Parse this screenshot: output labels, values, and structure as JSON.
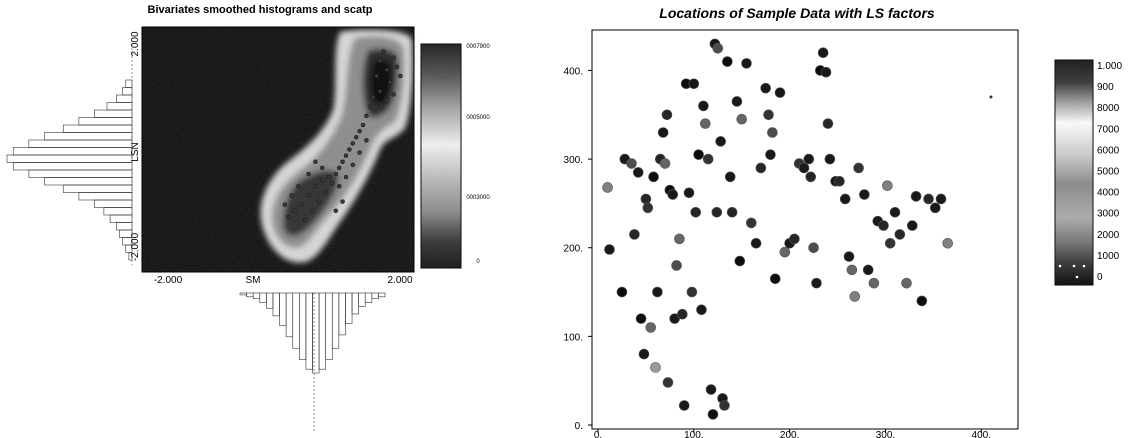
{
  "chart_data": [
    {
      "type": "heatmap",
      "title": "Bivariates smoothed histograms and scatp",
      "xlabel": "SM",
      "ylabel": "LSN",
      "xlim": [
        -2.0,
        2.0
      ],
      "ylim": [
        -2.0,
        2.0
      ],
      "x_tick_labels": [
        "-2.000",
        "2.000"
      ],
      "y_tick_labels": [
        "2.000",
        "-2.000"
      ],
      "colorbar_labels": [
        "0007900",
        "0005000",
        "0003000",
        "0"
      ],
      "scatter_points": [
        {
          "x": 0.9,
          "y": -0.3
        },
        {
          "x": 0.95,
          "y": -0.2
        },
        {
          "x": 1.0,
          "y": -0.1
        },
        {
          "x": 1.05,
          "y": 0.0
        },
        {
          "x": 1.1,
          "y": 0.1
        },
        {
          "x": 1.15,
          "y": 0.2
        },
        {
          "x": 1.2,
          "y": 0.3
        },
        {
          "x": 1.25,
          "y": 0.4
        },
        {
          "x": 1.3,
          "y": 0.55
        },
        {
          "x": 1.35,
          "y": 0.7
        },
        {
          "x": 1.4,
          "y": 0.85
        },
        {
          "x": 0.85,
          "y": -0.4
        },
        {
          "x": 0.75,
          "y": -0.45
        },
        {
          "x": 0.65,
          "y": -0.5
        },
        {
          "x": 0.55,
          "y": -0.6
        },
        {
          "x": 0.45,
          "y": -0.75
        },
        {
          "x": 0.35,
          "y": -0.9
        },
        {
          "x": 0.25,
          "y": -1.0
        },
        {
          "x": 0.15,
          "y": -1.1
        },
        {
          "x": 0.6,
          "y": -0.85
        },
        {
          "x": 0.7,
          "y": -0.7
        },
        {
          "x": 0.8,
          "y": -0.55
        },
        {
          "x": 0.5,
          "y": -1.0
        },
        {
          "x": 0.4,
          "y": -1.15
        },
        {
          "x": 0.3,
          "y": -0.6
        },
        {
          "x": 0.2,
          "y": -0.75
        },
        {
          "x": 0.1,
          "y": -0.9
        },
        {
          "x": 0.65,
          "y": -0.3
        },
        {
          "x": 0.9,
          "y": -0.6
        },
        {
          "x": 1.0,
          "y": -0.45
        },
        {
          "x": 1.1,
          "y": -0.25
        },
        {
          "x": 1.2,
          "y": -0.05
        },
        {
          "x": 1.3,
          "y": 0.15
        },
        {
          "x": 1.45,
          "y": 1.2
        },
        {
          "x": 1.5,
          "y": 1.45
        },
        {
          "x": 1.55,
          "y": 1.6
        },
        {
          "x": 1.6,
          "y": 1.3
        },
        {
          "x": 1.65,
          "y": 1.1
        },
        {
          "x": 1.7,
          "y": 1.5
        },
        {
          "x": 1.75,
          "y": 1.35
        },
        {
          "x": 1.5,
          "y": 0.95
        },
        {
          "x": 1.6,
          "y": 0.8
        },
        {
          "x": 1.7,
          "y": 0.9
        },
        {
          "x": 1.8,
          "y": 1.2
        },
        {
          "x": 0.55,
          "y": -0.2
        },
        {
          "x": 0.45,
          "y": -0.4
        },
        {
          "x": 0.95,
          "y": -0.85
        },
        {
          "x": 0.85,
          "y": -1.0
        }
      ],
      "marginal_y_histogram": [
        2,
        3,
        5,
        8,
        12,
        17,
        22,
        28,
        33,
        38,
        40,
        38,
        33,
        28,
        22,
        17,
        12,
        9,
        7,
        5,
        4,
        3,
        2,
        1
      ],
      "marginal_x_histogram": [
        1,
        2,
        3,
        5,
        8,
        12,
        17,
        23,
        29,
        35,
        40,
        42,
        40,
        35,
        29,
        22,
        16,
        11,
        7,
        5,
        3,
        2
      ]
    },
    {
      "type": "scatter",
      "title": "Locations of Sample Data with LS factors",
      "xlabel": "",
      "ylabel": "",
      "xlim": [
        0,
        430
      ],
      "ylim": [
        0,
        440
      ],
      "x_ticks": [
        "0.",
        "100.",
        "200.",
        "300.",
        "400."
      ],
      "y_ticks": [
        "0.",
        "100.",
        "200.",
        "300.",
        "400."
      ],
      "colorbar_labels": [
        "1.000",
        "900",
        "8000",
        "7000",
        "6000",
        "5000",
        "4000",
        "3000",
        "2000",
        "1000",
        "0"
      ],
      "points": [
        {
          "x": 12,
          "y": 198,
          "v": 0.9
        },
        {
          "x": 10,
          "y": 268,
          "v": 0.5
        },
        {
          "x": 25,
          "y": 150,
          "v": 0.95
        },
        {
          "x": 28,
          "y": 300,
          "v": 0.9
        },
        {
          "x": 35,
          "y": 295,
          "v": 0.7
        },
        {
          "x": 38,
          "y": 215,
          "v": 0.85
        },
        {
          "x": 42,
          "y": 285,
          "v": 0.9
        },
        {
          "x": 45,
          "y": 120,
          "v": 0.95
        },
        {
          "x": 48,
          "y": 80,
          "v": 0.9
        },
        {
          "x": 50,
          "y": 255,
          "v": 0.85
        },
        {
          "x": 52,
          "y": 245,
          "v": 0.8
        },
        {
          "x": 55,
          "y": 110,
          "v": 0.6
        },
        {
          "x": 58,
          "y": 280,
          "v": 0.95
        },
        {
          "x": 60,
          "y": 65,
          "v": 0.4
        },
        {
          "x": 62,
          "y": 150,
          "v": 0.9
        },
        {
          "x": 65,
          "y": 300,
          "v": 0.85
        },
        {
          "x": 68,
          "y": 330,
          "v": 0.9
        },
        {
          "x": 70,
          "y": 295,
          "v": 0.6
        },
        {
          "x": 72,
          "y": 350,
          "v": 0.85
        },
        {
          "x": 75,
          "y": 265,
          "v": 0.95
        },
        {
          "x": 73,
          "y": 48,
          "v": 0.8
        },
        {
          "x": 78,
          "y": 260,
          "v": 0.9
        },
        {
          "x": 80,
          "y": 120,
          "v": 0.9
        },
        {
          "x": 82,
          "y": 180,
          "v": 0.7
        },
        {
          "x": 85,
          "y": 210,
          "v": 0.6
        },
        {
          "x": 88,
          "y": 125,
          "v": 0.85
        },
        {
          "x": 90,
          "y": 22,
          "v": 0.9
        },
        {
          "x": 92,
          "y": 385,
          "v": 0.95
        },
        {
          "x": 95,
          "y": 262,
          "v": 0.9
        },
        {
          "x": 98,
          "y": 150,
          "v": 0.8
        },
        {
          "x": 100,
          "y": 385,
          "v": 0.9
        },
        {
          "x": 102,
          "y": 240,
          "v": 0.85
        },
        {
          "x": 105,
          "y": 305,
          "v": 0.95
        },
        {
          "x": 108,
          "y": 130,
          "v": 0.9
        },
        {
          "x": 110,
          "y": 360,
          "v": 0.9
        },
        {
          "x": 112,
          "y": 340,
          "v": 0.6
        },
        {
          "x": 115,
          "y": 300,
          "v": 0.8
        },
        {
          "x": 118,
          "y": 40,
          "v": 0.9
        },
        {
          "x": 120,
          "y": 12,
          "v": 0.95
        },
        {
          "x": 122,
          "y": 430,
          "v": 0.9
        },
        {
          "x": 124,
          "y": 240,
          "v": 0.85
        },
        {
          "x": 125,
          "y": 425,
          "v": 0.7
        },
        {
          "x": 128,
          "y": 320,
          "v": 0.9
        },
        {
          "x": 130,
          "y": 30,
          "v": 0.9
        },
        {
          "x": 132,
          "y": 22,
          "v": 0.8
        },
        {
          "x": 135,
          "y": 410,
          "v": 0.95
        },
        {
          "x": 138,
          "y": 280,
          "v": 0.9
        },
        {
          "x": 140,
          "y": 240,
          "v": 0.85
        },
        {
          "x": 145,
          "y": 365,
          "v": 0.9
        },
        {
          "x": 148,
          "y": 185,
          "v": 0.95
        },
        {
          "x": 150,
          "y": 345,
          "v": 0.6
        },
        {
          "x": 155,
          "y": 408,
          "v": 0.9
        },
        {
          "x": 160,
          "y": 228,
          "v": 0.8
        },
        {
          "x": 165,
          "y": 205,
          "v": 0.9
        },
        {
          "x": 170,
          "y": 290,
          "v": 0.85
        },
        {
          "x": 175,
          "y": 380,
          "v": 0.9
        },
        {
          "x": 178,
          "y": 350,
          "v": 0.8
        },
        {
          "x": 180,
          "y": 305,
          "v": 0.9
        },
        {
          "x": 182,
          "y": 330,
          "v": 0.7
        },
        {
          "x": 185,
          "y": 165,
          "v": 0.95
        },
        {
          "x": 190,
          "y": 375,
          "v": 0.9
        },
        {
          "x": 195,
          "y": 195,
          "v": 0.6
        },
        {
          "x": 200,
          "y": 205,
          "v": 0.9
        },
        {
          "x": 205,
          "y": 210,
          "v": 0.85
        },
        {
          "x": 210,
          "y": 295,
          "v": 0.8
        },
        {
          "x": 215,
          "y": 290,
          "v": 0.9
        },
        {
          "x": 220,
          "y": 300,
          "v": 0.9
        },
        {
          "x": 222,
          "y": 280,
          "v": 0.85
        },
        {
          "x": 225,
          "y": 200,
          "v": 0.7
        },
        {
          "x": 228,
          "y": 160,
          "v": 0.9
        },
        {
          "x": 232,
          "y": 400,
          "v": 0.95
        },
        {
          "x": 235,
          "y": 420,
          "v": 0.9
        },
        {
          "x": 238,
          "y": 398,
          "v": 0.9
        },
        {
          "x": 240,
          "y": 340,
          "v": 0.85
        },
        {
          "x": 242,
          "y": 300,
          "v": 0.9
        },
        {
          "x": 248,
          "y": 275,
          "v": 0.9
        },
        {
          "x": 252,
          "y": 275,
          "v": 0.85
        },
        {
          "x": 258,
          "y": 255,
          "v": 0.9
        },
        {
          "x": 262,
          "y": 190,
          "v": 0.9
        },
        {
          "x": 265,
          "y": 175,
          "v": 0.6
        },
        {
          "x": 268,
          "y": 145,
          "v": 0.5
        },
        {
          "x": 272,
          "y": 290,
          "v": 0.8
        },
        {
          "x": 278,
          "y": 260,
          "v": 0.9
        },
        {
          "x": 282,
          "y": 175,
          "v": 0.9
        },
        {
          "x": 288,
          "y": 160,
          "v": 0.6
        },
        {
          "x": 292,
          "y": 230,
          "v": 0.9
        },
        {
          "x": 298,
          "y": 225,
          "v": 0.85
        },
        {
          "x": 302,
          "y": 270,
          "v": 0.5
        },
        {
          "x": 305,
          "y": 205,
          "v": 0.8
        },
        {
          "x": 310,
          "y": 240,
          "v": 0.9
        },
        {
          "x": 315,
          "y": 215,
          "v": 0.85
        },
        {
          "x": 322,
          "y": 160,
          "v": 0.6
        },
        {
          "x": 328,
          "y": 225,
          "v": 0.9
        },
        {
          "x": 332,
          "y": 258,
          "v": 0.9
        },
        {
          "x": 338,
          "y": 140,
          "v": 0.95
        },
        {
          "x": 345,
          "y": 255,
          "v": 0.85
        },
        {
          "x": 352,
          "y": 245,
          "v": 0.9
        },
        {
          "x": 358,
          "y": 255,
          "v": 0.9
        },
        {
          "x": 365,
          "y": 205,
          "v": 0.5
        }
      ]
    }
  ]
}
